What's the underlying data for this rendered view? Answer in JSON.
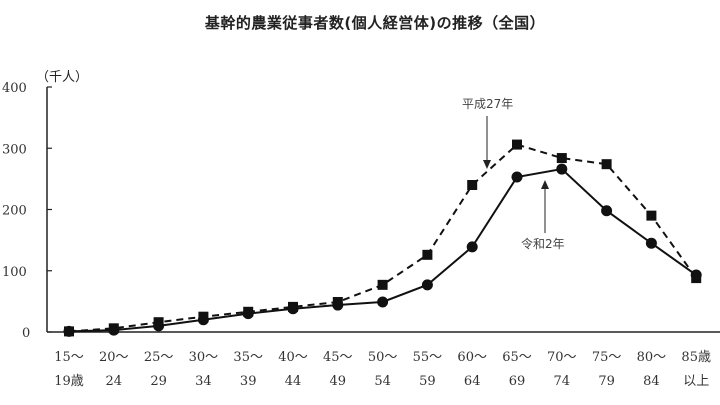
{
  "title": "基幹的農業従事者数(個人経営体)の推移（全国）",
  "unit_label": "（千人）",
  "chart_data": {
    "type": "line",
    "title": "基幹的農業従事者数(個人経営体)の推移（全国）",
    "xlabel": "",
    "ylabel": "（千人）",
    "ylim": [
      0,
      400
    ],
    "yticks": [
      0,
      100,
      200,
      300,
      400
    ],
    "grid": false,
    "categories": [
      "15～19歳",
      "20～24",
      "25～29",
      "30～34",
      "35～39",
      "40～44",
      "45～49",
      "50～54",
      "55～59",
      "60～64",
      "65～69",
      "70～74",
      "75～79",
      "80～84",
      "85歳以上"
    ],
    "tick_labels": [
      [
        "15～",
        "19歳"
      ],
      [
        "20～",
        "24"
      ],
      [
        "25～",
        "29"
      ],
      [
        "30～",
        "34"
      ],
      [
        "35～",
        "39"
      ],
      [
        "40～",
        "44"
      ],
      [
        "45～",
        "49"
      ],
      [
        "50～",
        "54"
      ],
      [
        "55～",
        "59"
      ],
      [
        "60～",
        "64"
      ],
      [
        "65～",
        "69"
      ],
      [
        "70～",
        "74"
      ],
      [
        "75～",
        "79"
      ],
      [
        "80～",
        "84"
      ],
      [
        "85歳",
        "以上"
      ]
    ],
    "series": [
      {
        "name": "平成27年",
        "style": "dashed",
        "marker": "square",
        "values": [
          1,
          6,
          16,
          25,
          33,
          41,
          49,
          77,
          126,
          240,
          306,
          284,
          274,
          190,
          88
        ]
      },
      {
        "name": "令和2年",
        "style": "solid",
        "marker": "circle",
        "values": [
          1,
          3,
          10,
          20,
          30,
          38,
          44,
          49,
          77,
          139,
          253,
          266,
          198,
          145,
          93
        ]
      }
    ],
    "annotations": [
      {
        "text": "平成27年",
        "points_to": "60～64"
      },
      {
        "text": "令和2年",
        "points_to": "70～74"
      }
    ]
  }
}
